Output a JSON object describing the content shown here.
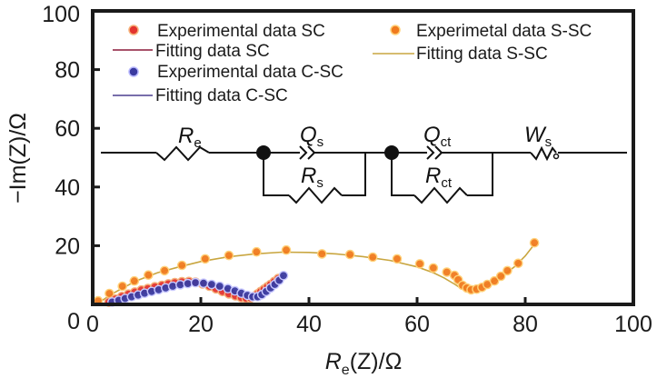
{
  "chart_data": {
    "type": "scatter",
    "title": "",
    "xlabel": {
      "main": "R",
      "sub": "e",
      "rest": "(Z)/Ω"
    },
    "ylabel": "−Im(Z)/Ω",
    "xlim": [
      0,
      100
    ],
    "ylim": [
      0,
      100
    ],
    "xticks": [
      0,
      20,
      40,
      60,
      80,
      100
    ],
    "yticks": [
      0,
      20,
      40,
      60,
      80,
      100
    ],
    "xtick_labels": [
      "0",
      "20",
      "40",
      "60",
      "80",
      "100"
    ],
    "ytick_labels": [
      "0",
      "20",
      "40",
      "60",
      "80",
      "100"
    ],
    "grid": false,
    "legend_position": "top",
    "legend": [
      {
        "label": "Experimental data SC",
        "kind": "marker",
        "color": "#e3342f",
        "edge": "#f6b27a"
      },
      {
        "label": "Fitting data SC",
        "kind": "line",
        "color": "#8b1a3a"
      },
      {
        "label": "Experimental data C-SC",
        "kind": "marker",
        "color": "#3a3aa0",
        "edge": "#b8b8ff"
      },
      {
        "label": "Fitting data C-SC",
        "kind": "line",
        "color": "#4b3f8f"
      },
      {
        "label": "Experimetal data S-SC",
        "kind": "marker",
        "color": "#f07a1e",
        "edge": "#ffd27a"
      },
      {
        "label": "Fitting data S-SC",
        "kind": "line",
        "color": "#c9a640"
      }
    ],
    "series": [
      {
        "name": "Experimental data S-SC",
        "type": "scatter",
        "color": "#f07a1e",
        "x": [
          1.0,
          3.1,
          5.5,
          7.7,
          10.3,
          13.3,
          16.5,
          20.8,
          25.2,
          30.3,
          35.8,
          42.4,
          47.6,
          51.8,
          56.3,
          60.5,
          63.0,
          65.5,
          66.9,
          67.6,
          68.4,
          69.2,
          70.0,
          71.0,
          72.0,
          73.0,
          74.3,
          75.5,
          76.7,
          78.7,
          81.7
        ],
        "y": [
          1.2,
          3.7,
          6.2,
          8.0,
          10.0,
          11.5,
          13.3,
          15.5,
          16.7,
          17.9,
          18.5,
          17.2,
          17.0,
          16.1,
          15.5,
          13.8,
          12.4,
          11.0,
          9.9,
          8.4,
          6.5,
          5.6,
          5.0,
          5.2,
          5.8,
          6.8,
          8.0,
          9.6,
          11.5,
          14.0,
          21.0
        ]
      },
      {
        "name": "Fitting data S-SC",
        "type": "line",
        "color": "#c9a640",
        "x": [
          1,
          4,
          8,
          12,
          16,
          20,
          25,
          30,
          35,
          40,
          45,
          50,
          55,
          60,
          63,
          65,
          67,
          68,
          69,
          70,
          72,
          74,
          76,
          78,
          80,
          81.7
        ],
        "y": [
          0.5,
          4.0,
          8.0,
          10.8,
          12.8,
          14.6,
          16.2,
          17.2,
          17.8,
          17.7,
          17.2,
          16.3,
          15.0,
          12.8,
          10.8,
          9.0,
          6.8,
          5.6,
          5.0,
          5.0,
          6.0,
          7.8,
          10.0,
          12.8,
          16.5,
          20.5
        ]
      },
      {
        "name": "Experimental data SC",
        "type": "scatter",
        "color": "#e3342f",
        "x": [
          3.0,
          4.2,
          5.4,
          6.6,
          7.8,
          9.0,
          10.2,
          11.5,
          12.8,
          14.0,
          15.2,
          16.5,
          17.8,
          19.0,
          20.3,
          21.6,
          22.8,
          24.0,
          25.2,
          26.4,
          27.5,
          28.4,
          29.2,
          29.9,
          30.5,
          31.1,
          31.7,
          32.3,
          32.9,
          33.6,
          34.3
        ],
        "y": [
          0.8,
          1.8,
          2.7,
          3.5,
          4.2,
          4.9,
          5.4,
          6.0,
          6.5,
          7.0,
          7.4,
          7.7,
          7.8,
          7.6,
          7.0,
          6.2,
          5.3,
          4.4,
          3.6,
          2.9,
          2.3,
          2.0,
          2.2,
          2.8,
          3.6,
          4.4,
          5.2,
          6.0,
          6.8,
          7.8,
          8.8
        ]
      },
      {
        "name": "Fitting data SC",
        "type": "line",
        "color": "#8b1a3a",
        "x": [
          3.0,
          6.0,
          9.0,
          12.0,
          15.0,
          17.5,
          20.0,
          23.0,
          26.0,
          28.5,
          30.0,
          32.0,
          34.3
        ],
        "y": [
          0.8,
          3.2,
          4.9,
          6.3,
          7.3,
          7.7,
          7.2,
          5.4,
          3.1,
          2.0,
          2.8,
          5.6,
          8.8
        ]
      },
      {
        "name": "Experimental data C-SC",
        "type": "scatter",
        "color": "#3a3aa0",
        "x": [
          3.6,
          4.8,
          6.0,
          7.2,
          8.4,
          9.6,
          10.9,
          12.2,
          13.5,
          14.8,
          16.2,
          17.6,
          19.0,
          20.5,
          22.0,
          23.5,
          25.0,
          26.3,
          27.5,
          28.6,
          29.6,
          30.5,
          31.3,
          32.1,
          32.9,
          33.7,
          34.5,
          35.3
        ],
        "y": [
          0.8,
          1.4,
          2.0,
          2.6,
          3.2,
          3.8,
          4.4,
          5.0,
          5.6,
          6.2,
          6.7,
          7.1,
          7.4,
          7.2,
          6.8,
          6.2,
          5.4,
          4.6,
          3.8,
          3.1,
          2.6,
          2.6,
          3.3,
          4.4,
          5.6,
          6.8,
          8.2,
          9.8
        ]
      },
      {
        "name": "Fitting data C-SC",
        "type": "line",
        "color": "#4b3f8f",
        "x": [
          3.6,
          7.0,
          10.0,
          13.0,
          16.0,
          19.0,
          22.0,
          25.0,
          28.0,
          30.0,
          32.0,
          34.0,
          35.3
        ],
        "y": [
          0.6,
          2.5,
          4.0,
          5.4,
          6.6,
          7.4,
          6.9,
          5.4,
          3.3,
          2.5,
          4.3,
          7.5,
          9.8
        ]
      }
    ]
  },
  "inset_circuit": {
    "elements": [
      {
        "symbol": "R",
        "sub": "e",
        "type": "resistor"
      },
      {
        "symbol": "Q",
        "sub": "s",
        "type": "cpe"
      },
      {
        "symbol": "R",
        "sub": "s",
        "type": "resistor"
      },
      {
        "symbol": "Q",
        "sub": "ct",
        "type": "cpe"
      },
      {
        "symbol": "R",
        "sub": "ct",
        "type": "resistor"
      },
      {
        "symbol": "W",
        "sub": "s",
        "type": "warburg"
      }
    ]
  }
}
